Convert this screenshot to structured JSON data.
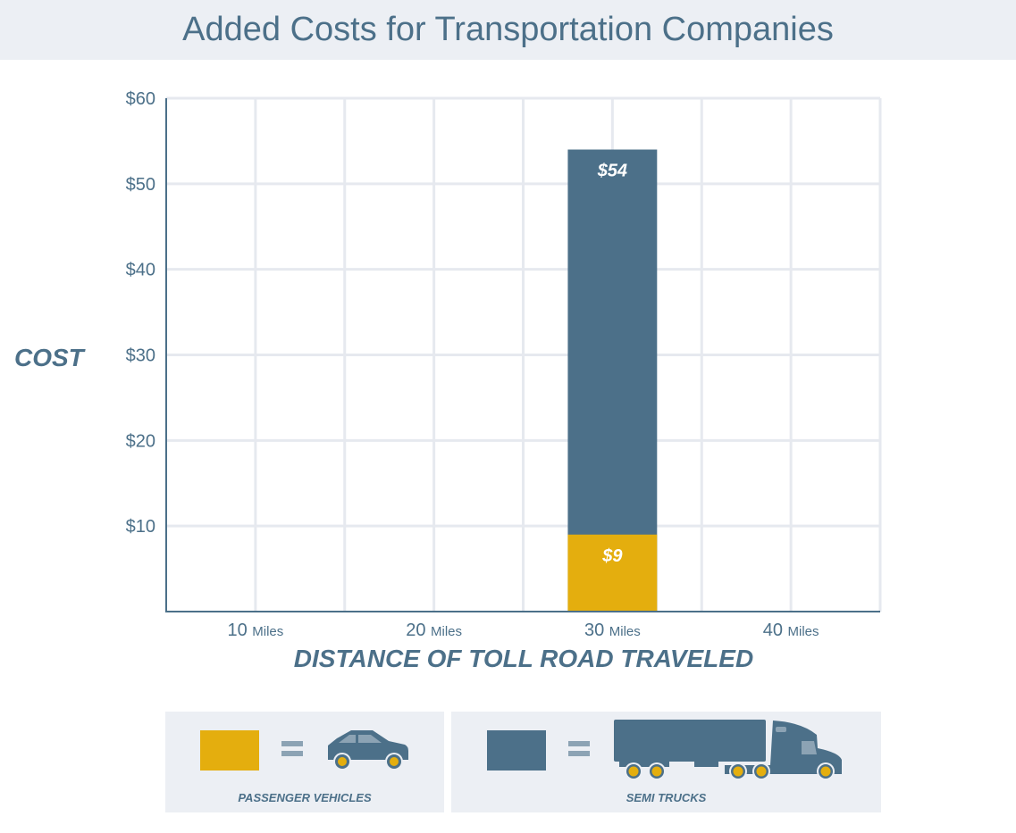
{
  "chart_data": {
    "type": "bar",
    "title": "Added Costs for Transportation Companies",
    "xlabel": "DISTANCE OF TOLL ROAD TRAVELED",
    "ylabel": "COST",
    "x_ticks": [
      {
        "value": 10,
        "num": "10",
        "unit": "Miles"
      },
      {
        "value": 20,
        "num": "20",
        "unit": "Miles"
      },
      {
        "value": 30,
        "num": "30",
        "unit": "Miles"
      },
      {
        "value": 40,
        "num": "40",
        "unit": "Miles"
      }
    ],
    "y_ticks": [
      "$10",
      "$20",
      "$30",
      "$40",
      "$50",
      "$60"
    ],
    "y_tick_values": [
      10,
      20,
      30,
      40,
      50,
      60
    ],
    "xlim": [
      5,
      45
    ],
    "ylim": [
      0,
      60
    ],
    "grid": true,
    "series": [
      {
        "name": "SEMI TRUCKS",
        "color": "#4c7089",
        "points": [
          {
            "x": 30,
            "y": 54,
            "label": "$54"
          }
        ]
      },
      {
        "name": "PASSENGER VEHICLES",
        "color": "#e4ae0e",
        "points": [
          {
            "x": 30,
            "y": 9,
            "label": "$9"
          }
        ]
      }
    ],
    "legend_placement": "bottom",
    "legend": [
      {
        "label": "PASSENGER VEHICLES",
        "color": "#e4ae0e",
        "icon": "car-icon"
      },
      {
        "label": "SEMI TRUCKS",
        "color": "#4c7089",
        "icon": "semi-truck-icon"
      }
    ]
  }
}
